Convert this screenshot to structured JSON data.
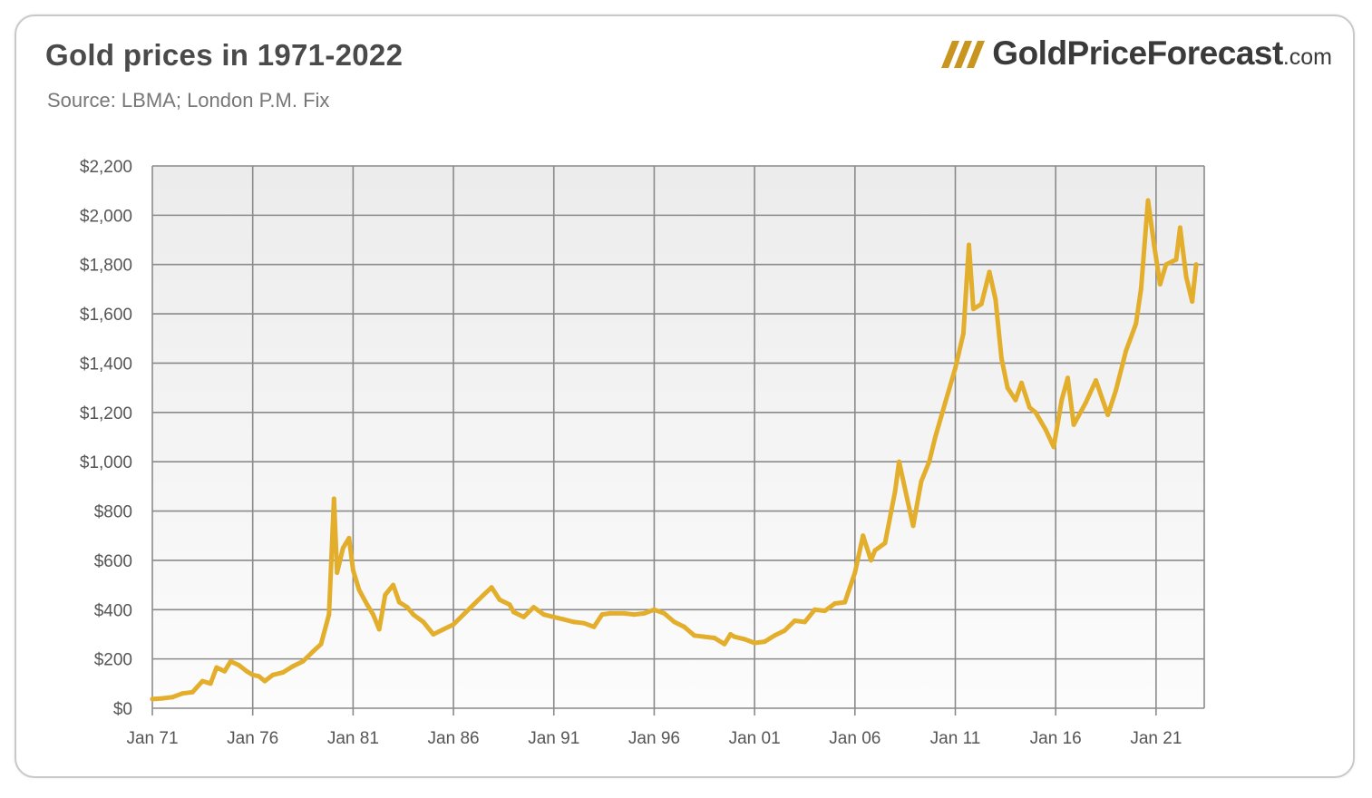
{
  "header": {
    "title": "Gold prices in 1971-2022",
    "source": "Source: LBMA; London P.M. Fix"
  },
  "logo": {
    "main": "GoldPriceForecast",
    "suffix": ".com"
  },
  "colors": {
    "line": "#E3AE2C",
    "grid": "#8a8a8a",
    "logo_accent": "#C8961E"
  },
  "chart_data": {
    "type": "line",
    "title": "Gold prices in 1971-2022",
    "subtitle": "Source: LBMA; London P.M. Fix",
    "xlabel": "",
    "ylabel": "",
    "grid": true,
    "legend": "none",
    "xlim": [
      1971.0,
      2023.4
    ],
    "ylim": [
      0,
      2200
    ],
    "x_ticks": [
      "Jan 71",
      "Jan 76",
      "Jan 81",
      "Jan 86",
      "Jan 91",
      "Jan 96",
      "Jan 01",
      "Jan 06",
      "Jan 11",
      "Jan 16",
      "Jan 21"
    ],
    "x_tick_values": [
      1971,
      1976,
      1981,
      1986,
      1991,
      1996,
      2001,
      2006,
      2011,
      2016,
      2021
    ],
    "y_ticks": [
      "$0",
      "$200",
      "$400",
      "$600",
      "$800",
      "$1,000",
      "$1,200",
      "$1,400",
      "$1,600",
      "$1,800",
      "$2,000",
      "$2,200"
    ],
    "y_tick_values": [
      0,
      200,
      400,
      600,
      800,
      1000,
      1200,
      1400,
      1600,
      1800,
      2000,
      2200
    ],
    "series": [
      {
        "points": [
          [
            1971.0,
            37
          ],
          [
            1971.5,
            40
          ],
          [
            1972.0,
            45
          ],
          [
            1972.5,
            60
          ],
          [
            1973.0,
            65
          ],
          [
            1973.5,
            110
          ],
          [
            1973.9,
            100
          ],
          [
            1974.2,
            165
          ],
          [
            1974.6,
            150
          ],
          [
            1974.9,
            190
          ],
          [
            1975.3,
            175
          ],
          [
            1975.7,
            150
          ],
          [
            1976.0,
            135
          ],
          [
            1976.3,
            130
          ],
          [
            1976.6,
            110
          ],
          [
            1977.0,
            135
          ],
          [
            1977.5,
            145
          ],
          [
            1978.0,
            170
          ],
          [
            1978.5,
            190
          ],
          [
            1979.0,
            230
          ],
          [
            1979.4,
            260
          ],
          [
            1979.8,
            380
          ],
          [
            1980.05,
            850
          ],
          [
            1980.2,
            550
          ],
          [
            1980.5,
            650
          ],
          [
            1980.8,
            690
          ],
          [
            1981.0,
            560
          ],
          [
            1981.3,
            480
          ],
          [
            1981.7,
            420
          ],
          [
            1982.0,
            380
          ],
          [
            1982.3,
            320
          ],
          [
            1982.6,
            460
          ],
          [
            1983.0,
            500
          ],
          [
            1983.3,
            430
          ],
          [
            1983.7,
            410
          ],
          [
            1984.0,
            380
          ],
          [
            1984.5,
            350
          ],
          [
            1985.0,
            300
          ],
          [
            1985.5,
            320
          ],
          [
            1986.0,
            340
          ],
          [
            1986.5,
            380
          ],
          [
            1987.0,
            420
          ],
          [
            1987.5,
            460
          ],
          [
            1987.9,
            490
          ],
          [
            1988.3,
            440
          ],
          [
            1988.8,
            420
          ],
          [
            1989.0,
            390
          ],
          [
            1989.5,
            370
          ],
          [
            1990.0,
            410
          ],
          [
            1990.5,
            380
          ],
          [
            1991.0,
            370
          ],
          [
            1991.5,
            360
          ],
          [
            1992.0,
            350
          ],
          [
            1992.5,
            345
          ],
          [
            1993.0,
            330
          ],
          [
            1993.4,
            380
          ],
          [
            1993.8,
            385
          ],
          [
            1994.5,
            385
          ],
          [
            1995.0,
            380
          ],
          [
            1995.5,
            385
          ],
          [
            1996.0,
            400
          ],
          [
            1996.5,
            385
          ],
          [
            1997.0,
            350
          ],
          [
            1997.5,
            330
          ],
          [
            1998.0,
            295
          ],
          [
            1998.5,
            290
          ],
          [
            1999.0,
            285
          ],
          [
            1999.5,
            260
          ],
          [
            1999.8,
            300
          ],
          [
            2000.0,
            290
          ],
          [
            2000.5,
            280
          ],
          [
            2001.0,
            265
          ],
          [
            2001.5,
            270
          ],
          [
            2002.0,
            295
          ],
          [
            2002.5,
            315
          ],
          [
            2003.0,
            355
          ],
          [
            2003.5,
            350
          ],
          [
            2004.0,
            400
          ],
          [
            2004.5,
            395
          ],
          [
            2005.0,
            425
          ],
          [
            2005.5,
            430
          ],
          [
            2006.0,
            550
          ],
          [
            2006.4,
            700
          ],
          [
            2006.8,
            600
          ],
          [
            2007.0,
            640
          ],
          [
            2007.5,
            670
          ],
          [
            2008.0,
            880
          ],
          [
            2008.2,
            1000
          ],
          [
            2008.6,
            850
          ],
          [
            2008.9,
            740
          ],
          [
            2009.3,
            920
          ],
          [
            2009.7,
            1000
          ],
          [
            2010.0,
            1100
          ],
          [
            2010.5,
            1240
          ],
          [
            2011.0,
            1380
          ],
          [
            2011.4,
            1520
          ],
          [
            2011.68,
            1880
          ],
          [
            2011.9,
            1620
          ],
          [
            2012.3,
            1640
          ],
          [
            2012.7,
            1770
          ],
          [
            2013.0,
            1660
          ],
          [
            2013.3,
            1420
          ],
          [
            2013.6,
            1300
          ],
          [
            2014.0,
            1250
          ],
          [
            2014.3,
            1320
          ],
          [
            2014.7,
            1220
          ],
          [
            2015.0,
            1200
          ],
          [
            2015.5,
            1130
          ],
          [
            2015.9,
            1060
          ],
          [
            2016.3,
            1250
          ],
          [
            2016.6,
            1340
          ],
          [
            2016.9,
            1150
          ],
          [
            2017.5,
            1240
          ],
          [
            2018.0,
            1330
          ],
          [
            2018.6,
            1190
          ],
          [
            2019.0,
            1290
          ],
          [
            2019.5,
            1450
          ],
          [
            2020.0,
            1560
          ],
          [
            2020.25,
            1700
          ],
          [
            2020.6,
            2060
          ],
          [
            2020.9,
            1880
          ],
          [
            2021.2,
            1720
          ],
          [
            2021.5,
            1800
          ],
          [
            2022.0,
            1820
          ],
          [
            2022.2,
            1950
          ],
          [
            2022.5,
            1750
          ],
          [
            2022.8,
            1650
          ],
          [
            2023.0,
            1800
          ]
        ]
      }
    ]
  }
}
